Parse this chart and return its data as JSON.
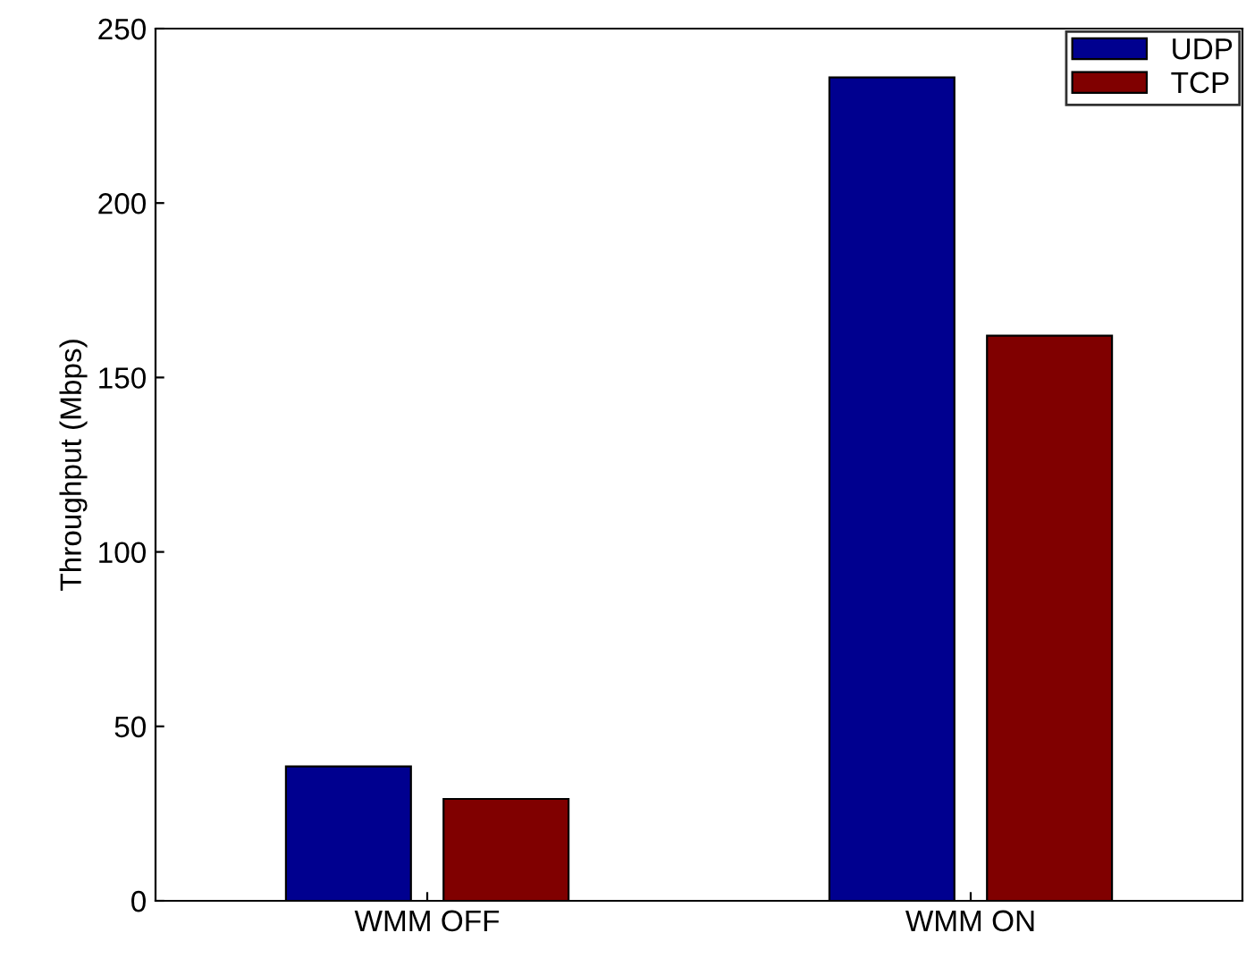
{
  "chart_data": {
    "type": "bar",
    "ylabel": "Throughput (Mbps)",
    "categories": [
      "WMM OFF",
      "WMM ON"
    ],
    "series": [
      {
        "name": "UDP",
        "color": "#00008f",
        "values": [
          38.5,
          236
        ]
      },
      {
        "name": "TCP",
        "color": "#800000",
        "values": [
          29.2,
          162
        ]
      }
    ],
    "ylim": [
      0,
      250
    ],
    "yticks": [
      0,
      50,
      100,
      150,
      200,
      250
    ],
    "grid": false,
    "legend": "top right"
  }
}
